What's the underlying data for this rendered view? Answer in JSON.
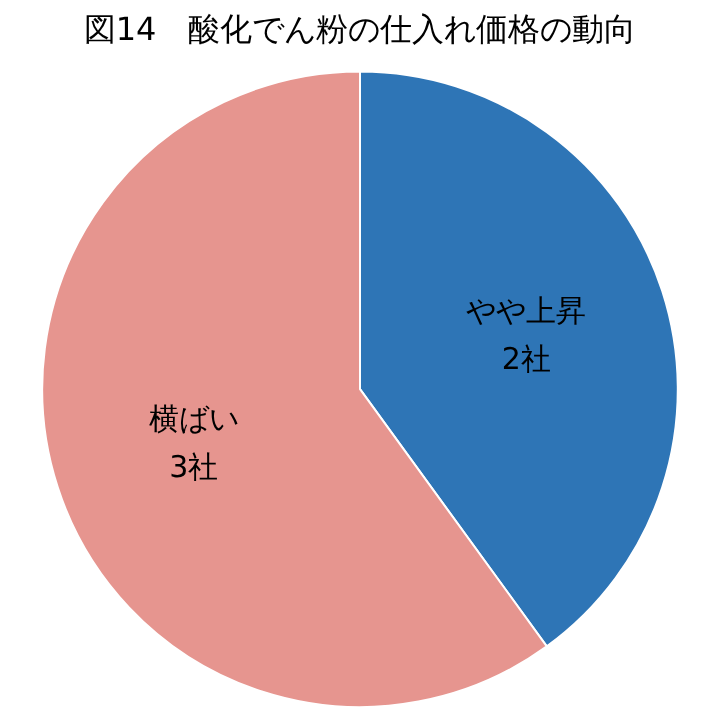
{
  "chart_data": {
    "type": "pie",
    "title": "図14　酸化でん粉の仕入れ価格の動向",
    "categories": [
      "やや上昇",
      "横ばい"
    ],
    "values": [
      2,
      3
    ],
    "value_labels": [
      "2社",
      "3社"
    ],
    "colors": [
      "#2e75b6",
      "#e6958f"
    ],
    "legend": false
  }
}
